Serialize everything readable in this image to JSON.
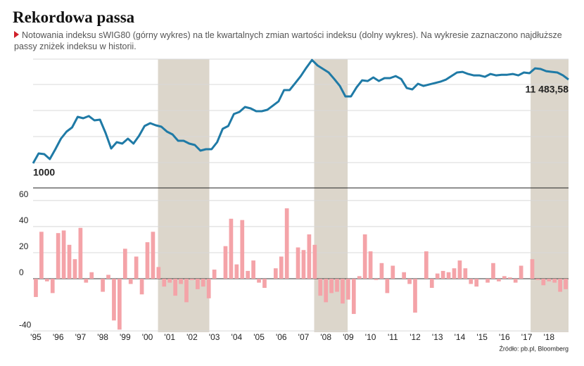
{
  "title": "Rekordowa passa",
  "subtitle": "Notowania indeksu sWIG80 (górny wykres) na tle kwartalnych zmian wartości indeksu (dolny wykres). Na wykresie zaznaczono najdłuższe passy zniżek indeksu w historii.",
  "source": "Źródło: pb.pl, Bloomberg",
  "shaded_periods": [
    [
      2000.6,
      2002.9
    ],
    [
      2007.6,
      2009.1
    ],
    [
      2017.3,
      2019
    ]
  ],
  "chart_data": [
    {
      "type": "line",
      "color": "#1f7aa6",
      "log": true,
      "xlim": [
        1995,
        2019
      ],
      "ylim": [
        478,
        20800
      ],
      "start_label": "1000",
      "end_label": "11 483,58",
      "values": [
        1000,
        1332,
        1306,
        1131,
        1507,
        2048,
        2516,
        2845,
        3870,
        3716,
        3956,
        3494,
        3566,
        2414,
        1538,
        1851,
        1777,
        2048,
        1777,
        2225,
        2964,
        3217,
        3027,
        2905,
        2516,
        2318,
        1928,
        1928,
        1777,
        1705,
        1446,
        1507,
        1507,
        1851,
        2731,
        2964,
        4201,
        4468,
        5154,
        4950,
        4558,
        4558,
        4750,
        5365,
        6068,
        8430,
        8430,
        10340,
        12680,
        16200,
        20300,
        17300,
        15600,
        14080,
        11650,
        9520,
        7020,
        7020,
        9140,
        11220,
        11000,
        12200,
        11000,
        11950,
        11950,
        12680,
        11650,
        8960,
        8610,
        10150,
        9520,
        9930,
        10340,
        10780,
        11440,
        12680,
        14080,
        14360,
        13500,
        12950,
        12950,
        12440,
        13500,
        12950,
        13200,
        13200,
        13500,
        12950,
        14080,
        13790,
        15900,
        15600,
        14640,
        14360,
        14080,
        12950,
        11483.58
      ]
    },
    {
      "type": "bar",
      "color": "#f4a3a8",
      "xlim": [
        1995,
        2019
      ],
      "ylim": [
        -41,
        68
      ],
      "yticks": [
        60,
        40,
        20,
        0,
        -40
      ],
      "grid": true,
      "xticks": [
        {
          "value": 1995,
          "label": "'95"
        },
        {
          "value": 1996,
          "label": "'96"
        },
        {
          "value": 1997,
          "label": "'97"
        },
        {
          "value": 1998,
          "label": "'98"
        },
        {
          "value": 1999,
          "label": "'99"
        },
        {
          "value": 2000,
          "label": "'00"
        },
        {
          "value": 2001,
          "label": "'01"
        },
        {
          "value": 2002,
          "label": "'02"
        },
        {
          "value": 2003,
          "label": "'03"
        },
        {
          "value": 2004,
          "label": "'04"
        },
        {
          "value": 2005,
          "label": "'05"
        },
        {
          "value": 2006,
          "label": "'06"
        },
        {
          "value": 2007,
          "label": "'07"
        },
        {
          "value": 2008,
          "label": "'08"
        },
        {
          "value": 2009,
          "label": "'09"
        },
        {
          "value": 2010,
          "label": "'10"
        },
        {
          "value": 2011,
          "label": "'11"
        },
        {
          "value": 2012,
          "label": "'12"
        },
        {
          "value": 2013,
          "label": "'13"
        },
        {
          "value": 2014,
          "label": "'14"
        },
        {
          "value": 2015,
          "label": "'15"
        },
        {
          "value": 2016,
          "label": "'16"
        },
        {
          "value": 2017,
          "label": "'17"
        },
        {
          "value": 2018,
          "label": "'18"
        }
      ],
      "values": [
        -14,
        36,
        -2,
        -11,
        35,
        37,
        26,
        15,
        39,
        -3,
        5,
        0,
        -10,
        3,
        -32,
        -39,
        23,
        -4,
        17,
        -12,
        28,
        36,
        9,
        -6,
        -3,
        -13,
        -4,
        -18,
        -1,
        -8,
        -6,
        -15,
        7,
        0,
        25,
        46,
        11,
        45,
        6,
        14,
        -3,
        -7,
        0,
        8,
        17,
        54,
        0,
        24,
        22,
        34,
        26,
        -13,
        -18,
        -11,
        -10,
        -19,
        -16,
        -27,
        2,
        34,
        21,
        -1,
        12,
        -11,
        10,
        0,
        5,
        -4,
        -26,
        0,
        21,
        -7,
        4,
        6,
        5,
        8,
        14,
        8,
        -4,
        -6,
        0,
        -3,
        12,
        -2,
        2,
        1,
        -3,
        10,
        0,
        15,
        -1,
        -5,
        -2,
        -3,
        -10,
        -8
      ]
    }
  ]
}
